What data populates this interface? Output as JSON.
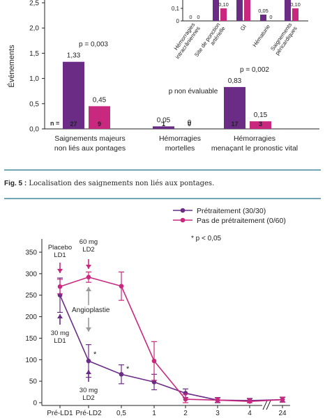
{
  "chart_data": [
    {
      "type": "bar",
      "ylabel": "Événements",
      "ylim": [
        0,
        2.5
      ],
      "yticks": [
        "0,0",
        "0,5",
        "1,0",
        "1,5",
        "2,0",
        "2,5"
      ],
      "n_label": "n =",
      "colors": {
        "pretreated": "#6b2c86",
        "not_pretreated": "#c8287e"
      },
      "groups": [
        {
          "label": [
            "Saignements majeurs",
            "non liés aux pontages"
          ],
          "p": "p = 0,003",
          "values": [
            1.33,
            0.45
          ],
          "value_labels": [
            "1,33",
            "0,45"
          ],
          "n": [
            "27",
            "9"
          ]
        },
        {
          "label": [
            "Hémorragies",
            "mortelles"
          ],
          "p": "p non évaluable",
          "values": [
            0.05,
            0
          ],
          "value_labels": [
            "0,05",
            "0"
          ],
          "n": [
            "1",
            "0"
          ]
        },
        {
          "label": [
            "Hémorragies",
            "menaçant le pronostic vital"
          ],
          "p": "p = 0,002",
          "values": [
            0.83,
            0.15
          ],
          "value_labels": [
            "0,83",
            "0,15"
          ],
          "n": [
            "17",
            "3"
          ]
        }
      ]
    },
    {
      "type": "bar",
      "inset": true,
      "yticks": [
        "0",
        "0,1"
      ],
      "categories": [
        "Hémorragies intracrâniennes",
        "Site de ponction artérielle",
        "GI",
        "Hématurie",
        "Saignements péricardiques"
      ],
      "category_lines": [
        [
          "Hémorragies",
          "intracrâniennes"
        ],
        [
          "Site de ponction",
          "artérielle"
        ],
        [
          "GI"
        ],
        [
          "Hématurie"
        ],
        [
          "Saignements",
          "péricardiques"
        ]
      ],
      "series": [
        {
          "name": "Prétraitement",
          "values": [
            0,
            0.4,
            0.28,
            0.05,
            0.4
          ]
        },
        {
          "name": "Pas de prétraitement",
          "values": [
            0,
            0.1,
            0.18,
            0,
            0.1
          ]
        }
      ],
      "data_labels": [
        "0",
        "0",
        "",
        "0,10",
        "",
        "",
        "0,05",
        "0",
        "",
        "0,10"
      ]
    },
    {
      "type": "line",
      "x": [
        "Pré-LD1",
        "Pré-LD2",
        "0,5",
        "1",
        "2",
        "3",
        "4",
        "24"
      ],
      "ylim": [
        0,
        350
      ],
      "yticks": [
        "0",
        "50",
        "100",
        "150",
        "200",
        "250",
        "300",
        "350"
      ],
      "series": [
        {
          "name": "Prétraitement (30/30)",
          "color": "#6b2c86",
          "values": [
            250,
            97,
            66,
            48,
            22,
            6,
            5,
            7
          ],
          "err": [
            [
              40,
              40
            ],
            [
              38,
              38
            ],
            [
              22,
              22
            ],
            [
              18,
              18
            ],
            [
              10,
              10
            ],
            [
              6,
              6
            ],
            [
              5,
              5
            ],
            [
              5,
              5
            ]
          ]
        },
        {
          "name": "Pas de prétraitement (0/60)",
          "color": "#c8287e",
          "values": [
            270,
            292,
            271,
            97,
            8,
            6,
            3,
            7
          ],
          "err": [
            [
              17,
              17
            ],
            [
              12,
              12
            ],
            [
              33,
              33
            ],
            [
              45,
              45
            ],
            [
              12,
              12
            ],
            [
              5,
              5
            ],
            [
              6,
              6
            ],
            [
              6,
              6
            ]
          ]
        }
      ],
      "significance_note": "* p < 0,05",
      "annotations": {
        "placebo": [
          "Placebo",
          "LD1"
        ],
        "mg60": [
          "60 mg",
          "LD2"
        ],
        "mg30a": [
          "30 mg",
          "LD1"
        ],
        "mg30b": [
          "30 mg",
          "LD2"
        ],
        "angioplastie": "Angioplastie",
        "star": "*"
      }
    }
  ],
  "figure_caption": {
    "label": "Fig. 5 :",
    "text": "Localisation des saignements non liés aux pontages."
  }
}
